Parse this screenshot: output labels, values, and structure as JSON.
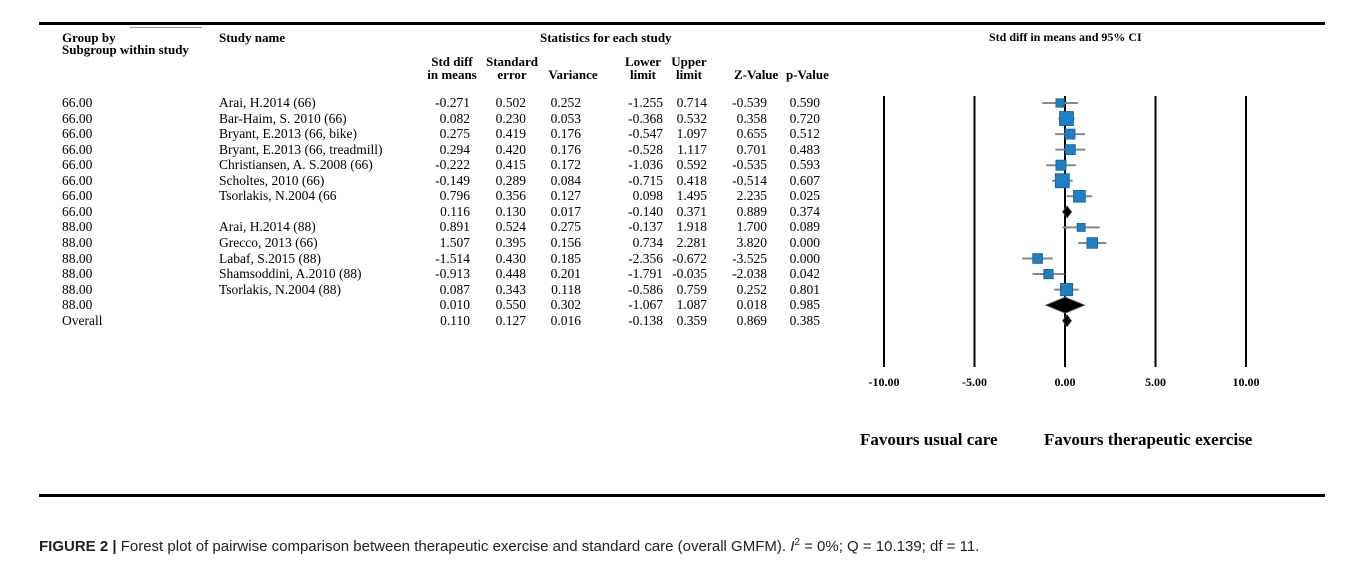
{
  "headers": {
    "group_by": "Group by",
    "subgroup": "Subgroup within study",
    "study_name": "Study name",
    "stats_title": "Statistics for each study",
    "col_std_diff_1": "Std diff",
    "col_std_diff_2": "in means",
    "col_se_1": "Standard",
    "col_se_2": "error",
    "col_variance": "Variance",
    "col_lower_1": "Lower",
    "col_lower_2": "limit",
    "col_upper_1": "Upper",
    "col_upper_2": "limit",
    "col_z": "Z-Value",
    "col_p": "p-Value",
    "plot_title": "Std diff in means and 95% CI"
  },
  "favours": {
    "left": "Favours usual care",
    "right": "Favours therapeutic exercise"
  },
  "caption": {
    "label": "FIGURE 2 |",
    "text_a": " Forest plot of pairwise comparison between therapeutic exercise and standard care (overall GMFM). ",
    "i2_symbol": "I",
    "i2_sup": "2",
    "text_b": " = 0%; Q = 10.139; df = 11."
  },
  "chart_data": {
    "type": "forest",
    "title": "Std diff in means and 95% CI",
    "x_ticks": [
      "-10.00",
      "-5.00",
      "0.00",
      "5.00",
      "10.00"
    ],
    "xlim": [
      -10,
      10
    ],
    "rows": [
      {
        "group": "66.00",
        "study": "Arai, H.2014 (66)",
        "std_diff": "-0.271",
        "se": "0.502",
        "variance": "0.252",
        "lower": "-1.255",
        "upper": "0.714",
        "z": "-0.539",
        "p": "0.590",
        "kind": "study"
      },
      {
        "group": "66.00",
        "study": "Bar-Haim, S. 2010 (66)",
        "std_diff": "0.082",
        "se": "0.230",
        "variance": "0.053",
        "lower": "-0.368",
        "upper": "0.532",
        "z": "0.358",
        "p": "0.720",
        "kind": "study"
      },
      {
        "group": "66.00",
        "study": "Bryant, E.2013 (66, bike)",
        "std_diff": "0.275",
        "se": "0.419",
        "variance": "0.176",
        "lower": "-0.547",
        "upper": "1.097",
        "z": "0.655",
        "p": "0.512",
        "kind": "study"
      },
      {
        "group": "66.00",
        "study": "Bryant, E.2013 (66, treadmill)",
        "std_diff": "0.294",
        "se": "0.420",
        "variance": "0.176",
        "lower": "-0.528",
        "upper": "1.117",
        "z": "0.701",
        "p": "0.483",
        "kind": "study"
      },
      {
        "group": "66.00",
        "study": "Christiansen, A. S.2008 (66)",
        "std_diff": "-0.222",
        "se": "0.415",
        "variance": "0.172",
        "lower": "-1.036",
        "upper": "0.592",
        "z": "-0.535",
        "p": "0.593",
        "kind": "study"
      },
      {
        "group": "66.00",
        "study": "Scholtes, 2010 (66)",
        "std_diff": "-0.149",
        "se": "0.289",
        "variance": "0.084",
        "lower": "-0.715",
        "upper": "0.418",
        "z": "-0.514",
        "p": "0.607",
        "kind": "study"
      },
      {
        "group": "66.00",
        "study": "Tsorlakis, N.2004 (66",
        "std_diff": "0.796",
        "se": "0.356",
        "variance": "0.127",
        "lower": "0.098",
        "upper": "1.495",
        "z": "2.235",
        "p": "0.025",
        "kind": "study"
      },
      {
        "group": "66.00",
        "study": "",
        "std_diff": "0.116",
        "se": "0.130",
        "variance": "0.017",
        "lower": "-0.140",
        "upper": "0.371",
        "z": "0.889",
        "p": "0.374",
        "kind": "subtotal"
      },
      {
        "group": "88.00",
        "study": "Arai, H.2014 (88)",
        "std_diff": "0.891",
        "se": "0.524",
        "variance": "0.275",
        "lower": "-0.137",
        "upper": "1.918",
        "z": "1.700",
        "p": "0.089",
        "kind": "study"
      },
      {
        "group": "88.00",
        "study": "Grecco, 2013 (66)",
        "std_diff": "1.507",
        "se": "0.395",
        "variance": "0.156",
        "lower": "0.734",
        "upper": "2.281",
        "z": "3.820",
        "p": "0.000",
        "kind": "study"
      },
      {
        "group": "88.00",
        "study": "Labaf, S.2015 (88)",
        "std_diff": "-1.514",
        "se": "0.430",
        "variance": "0.185",
        "lower": "-2.356",
        "upper": "-0.672",
        "z": "-3.525",
        "p": "0.000",
        "kind": "study"
      },
      {
        "group": "88.00",
        "study": "Shamsoddini, A.2010 (88)",
        "std_diff": "-0.913",
        "se": "0.448",
        "variance": "0.201",
        "lower": "-1.791",
        "upper": "-0.035",
        "z": "-2.038",
        "p": "0.042",
        "kind": "study"
      },
      {
        "group": "88.00",
        "study": "Tsorlakis, N.2004 (88)",
        "std_diff": "0.087",
        "se": "0.343",
        "variance": "0.118",
        "lower": "-0.586",
        "upper": "0.759",
        "z": "0.252",
        "p": "0.801",
        "kind": "study"
      },
      {
        "group": "88.00",
        "study": "",
        "std_diff": "0.010",
        "se": "0.550",
        "variance": "0.302",
        "lower": "-1.067",
        "upper": "1.087",
        "z": "0.018",
        "p": "0.985",
        "kind": "subtotal"
      },
      {
        "group": "Overall",
        "study": "",
        "std_diff": "0.110",
        "se": "0.127",
        "variance": "0.016",
        "lower": "-0.138",
        "upper": "0.359",
        "z": "0.869",
        "p": "0.385",
        "kind": "overall"
      }
    ],
    "colors": {
      "marker": "#1f7fc4",
      "marker_edge": "#1a5f8f",
      "ci_line": "#888888",
      "diamond": "#000000"
    }
  }
}
